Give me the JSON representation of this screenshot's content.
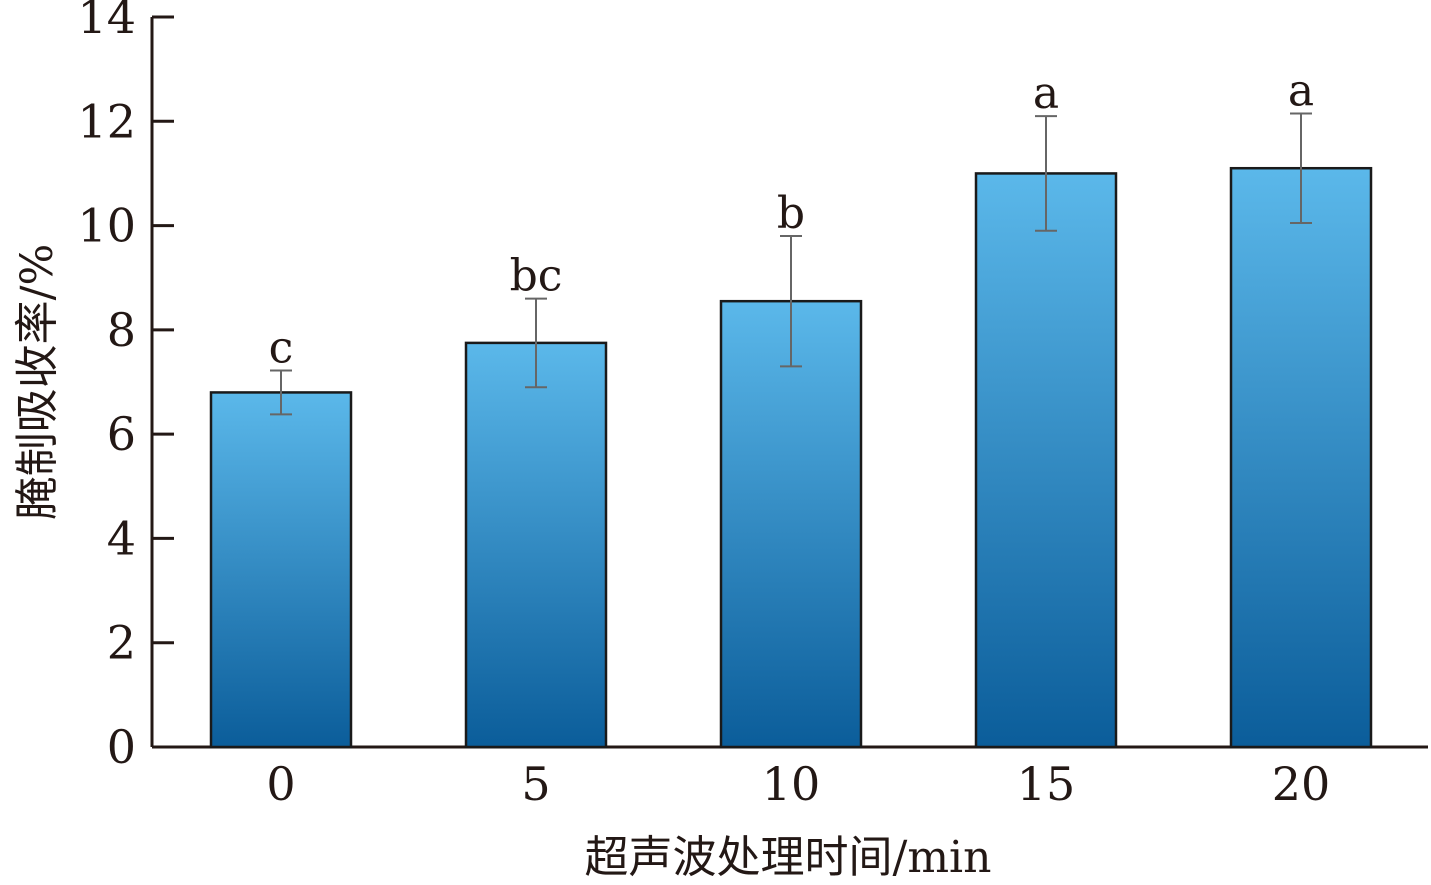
{
  "chart_data": {
    "type": "bar",
    "categories": [
      "0",
      "5",
      "10",
      "15",
      "20"
    ],
    "values": [
      6.8,
      7.75,
      8.55,
      11.0,
      11.1
    ],
    "errors": [
      0.42,
      0.85,
      1.25,
      1.1,
      1.05
    ],
    "significance": [
      "c",
      "bc",
      "b",
      "a",
      "a"
    ],
    "xlabel": "超声波处理时间/min",
    "ylabel": "腌制吸收率/%",
    "ylim": [
      0,
      14
    ],
    "yticks": [
      "0",
      "2",
      "4",
      "6",
      "8",
      "10",
      "12",
      "14"
    ],
    "grid": false,
    "colors": {
      "bar_top": "#5bb8ea",
      "bar_bottom": "#0b5d9a",
      "bar_edge": "#1a1a1a",
      "error_bar": "#666666",
      "axis": "#231815"
    }
  }
}
